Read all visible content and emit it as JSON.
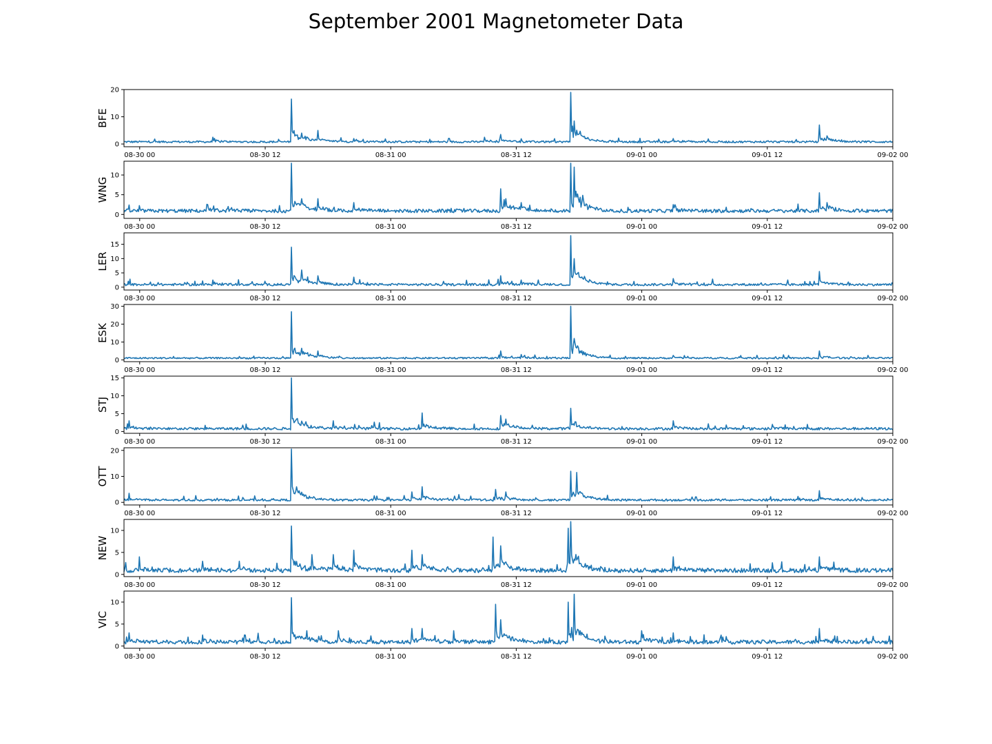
{
  "chart_data": {
    "type": "line",
    "title": "September 2001 Magnetometer Data",
    "x_range": [
      "2001-08-29 22:30",
      "2001-09-02 00:00"
    ],
    "x_ticks": [
      "08-30 00",
      "08-30 12",
      "08-31 00",
      "08-31 12",
      "09-01 00",
      "09-01 12",
      "09-02 00"
    ],
    "color": "#1f77b4",
    "grid": false,
    "series": [
      {
        "name": "BFE",
        "ylim": [
          -1,
          20
        ],
        "yticks": [
          0,
          10,
          20
        ],
        "base": 0.8,
        "noise": 0.7,
        "peaks": [
          [
            "2001-08-30 07:00",
            2.5
          ],
          [
            "2001-08-30 14:30",
            16.5
          ],
          [
            "2001-08-30 15:30",
            4
          ],
          [
            "2001-08-30 17:00",
            5
          ],
          [
            "2001-08-30 20:30",
            2
          ],
          [
            "2001-08-31 09:00",
            2.5
          ],
          [
            "2001-08-31 10:30",
            3.5
          ],
          [
            "2001-08-31 17:15",
            19
          ],
          [
            "2001-08-31 17:30",
            8.5
          ],
          [
            "2001-09-01 03:00",
            2
          ],
          [
            "2001-09-01 17:00",
            7
          ],
          [
            "2001-09-01 17:45",
            3
          ]
        ]
      },
      {
        "name": "WNG",
        "ylim": [
          -1,
          13.5
        ],
        "yticks": [
          0,
          5,
          10
        ],
        "base": 0.9,
        "noise": 0.9,
        "peaks": [
          [
            "2001-08-30 06:30",
            2.5
          ],
          [
            "2001-08-30 14:30",
            13
          ],
          [
            "2001-08-30 15:30",
            4
          ],
          [
            "2001-08-30 17:00",
            4
          ],
          [
            "2001-08-30 20:30",
            3
          ],
          [
            "2001-08-31 10:30",
            6.5
          ],
          [
            "2001-08-31 11:00",
            4
          ],
          [
            "2001-08-31 12:30",
            3
          ],
          [
            "2001-08-31 17:15",
            13
          ],
          [
            "2001-08-31 17:30",
            12
          ],
          [
            "2001-09-01 03:00",
            2.5
          ],
          [
            "2001-09-01 17:00",
            5.5
          ],
          [
            "2001-09-01 17:45",
            3
          ]
        ]
      },
      {
        "name": "LER",
        "ylim": [
          -1,
          19
        ],
        "yticks": [
          0,
          5,
          10,
          15
        ],
        "base": 0.9,
        "noise": 0.8,
        "peaks": [
          [
            "2001-08-30 07:00",
            2.5
          ],
          [
            "2001-08-30 14:30",
            14
          ],
          [
            "2001-08-30 15:30",
            6
          ],
          [
            "2001-08-30 17:00",
            4
          ],
          [
            "2001-08-30 20:30",
            3.5
          ],
          [
            "2001-08-31 10:30",
            4
          ],
          [
            "2001-08-31 12:30",
            2.5
          ],
          [
            "2001-08-31 17:15",
            18
          ],
          [
            "2001-08-31 17:30",
            10
          ],
          [
            "2001-09-01 03:00",
            3
          ],
          [
            "2001-09-01 17:00",
            5.5
          ]
        ]
      },
      {
        "name": "ESK",
        "ylim": [
          -1,
          31
        ],
        "yticks": [
          0,
          10,
          20,
          30
        ],
        "base": 1.0,
        "noise": 0.9,
        "peaks": [
          [
            "2001-08-30 14:30",
            27
          ],
          [
            "2001-08-30 15:30",
            6.5
          ],
          [
            "2001-08-30 17:00",
            5
          ],
          [
            "2001-08-31 10:30",
            5
          ],
          [
            "2001-08-31 12:30",
            3
          ],
          [
            "2001-08-31 17:15",
            30
          ],
          [
            "2001-08-31 17:30",
            12
          ],
          [
            "2001-09-01 03:00",
            2.5
          ],
          [
            "2001-09-01 17:00",
            5
          ]
        ]
      },
      {
        "name": "STJ",
        "ylim": [
          -0.5,
          15.5
        ],
        "yticks": [
          0,
          5,
          10,
          15
        ],
        "base": 0.8,
        "noise": 0.7,
        "peaks": [
          [
            "2001-08-29 23:00",
            3
          ],
          [
            "2001-08-30 14:30",
            15
          ],
          [
            "2001-08-30 15:00",
            3.5
          ],
          [
            "2001-08-30 18:30",
            3
          ],
          [
            "2001-08-31 03:00",
            5.2
          ],
          [
            "2001-08-31 10:30",
            4.5
          ],
          [
            "2001-08-31 11:00",
            3.5
          ],
          [
            "2001-08-31 17:15",
            6.5
          ],
          [
            "2001-09-01 03:00",
            3
          ],
          [
            "2001-09-01 12:30",
            2
          ]
        ]
      },
      {
        "name": "OTT",
        "ylim": [
          -1,
          21
        ],
        "yticks": [
          0,
          10,
          20
        ],
        "base": 0.9,
        "noise": 0.8,
        "peaks": [
          [
            "2001-08-29 23:00",
            3.5
          ],
          [
            "2001-08-30 14:30",
            20.5
          ],
          [
            "2001-08-30 15:00",
            6
          ],
          [
            "2001-08-31 02:00",
            4
          ],
          [
            "2001-08-31 03:00",
            6
          ],
          [
            "2001-08-31 06:30",
            3
          ],
          [
            "2001-08-31 10:00",
            5
          ],
          [
            "2001-08-31 11:00",
            4
          ],
          [
            "2001-08-31 17:15",
            12
          ],
          [
            "2001-08-31 17:45",
            11.5
          ],
          [
            "2001-09-01 17:00",
            4.5
          ]
        ]
      },
      {
        "name": "NEW",
        "ylim": [
          -0.5,
          12.5
        ],
        "yticks": [
          0,
          5,
          10
        ],
        "base": 0.9,
        "noise": 1.0,
        "peaks": [
          [
            "2001-08-30 00:00",
            4
          ],
          [
            "2001-08-30 06:00",
            3
          ],
          [
            "2001-08-30 09:30",
            3
          ],
          [
            "2001-08-30 14:30",
            11
          ],
          [
            "2001-08-30 16:30",
            4.5
          ],
          [
            "2001-08-30 18:30",
            4.5
          ],
          [
            "2001-08-30 20:30",
            5.5
          ],
          [
            "2001-08-31 02:00",
            5.5
          ],
          [
            "2001-08-31 03:00",
            4.5
          ],
          [
            "2001-08-31 09:45",
            8.5
          ],
          [
            "2001-08-31 10:30",
            6.5
          ],
          [
            "2001-08-31 17:00",
            10.5
          ],
          [
            "2001-08-31 17:15",
            12
          ],
          [
            "2001-09-01 03:00",
            4
          ],
          [
            "2001-09-01 17:00",
            4
          ]
        ]
      },
      {
        "name": "VIC",
        "ylim": [
          -0.5,
          12.5
        ],
        "yticks": [
          0,
          5,
          10
        ],
        "base": 0.9,
        "noise": 0.9,
        "peaks": [
          [
            "2001-08-29 23:00",
            3
          ],
          [
            "2001-08-30 06:00",
            2.5
          ],
          [
            "2001-08-30 10:00",
            2.5
          ],
          [
            "2001-08-30 14:30",
            11
          ],
          [
            "2001-08-30 16:00",
            3.5
          ],
          [
            "2001-08-30 19:00",
            3.5
          ],
          [
            "2001-08-31 02:00",
            4
          ],
          [
            "2001-08-31 03:00",
            4
          ],
          [
            "2001-08-31 06:00",
            3.5
          ],
          [
            "2001-08-31 10:00",
            9.5
          ],
          [
            "2001-08-31 10:30",
            6
          ],
          [
            "2001-08-31 17:00",
            10
          ],
          [
            "2001-08-31 17:30",
            11.8
          ],
          [
            "2001-09-01 00:00",
            3.5
          ],
          [
            "2001-09-01 03:00",
            3
          ],
          [
            "2001-09-01 17:00",
            4
          ]
        ]
      }
    ]
  }
}
